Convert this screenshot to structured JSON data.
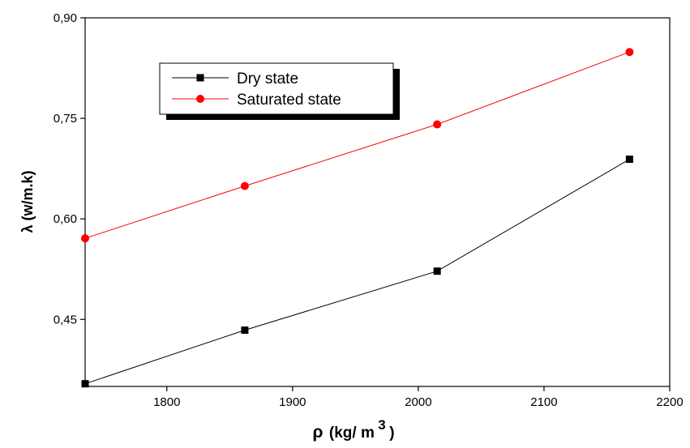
{
  "chart_data": {
    "type": "line",
    "xlabel_symbol": "ρ",
    "xlabel_unit": "(kg/ m",
    "xlabel_exp": "3",
    "xlabel_close": ")",
    "ylabel": "λ (w/m.k)",
    "xlim": [
      1735,
      2200
    ],
    "ylim": [
      0.35,
      0.9
    ],
    "x_ticks": [
      {
        "value": 1800,
        "label": "1800"
      },
      {
        "value": 1900,
        "label": "1900"
      },
      {
        "value": 2000,
        "label": "2000"
      },
      {
        "value": 2100,
        "label": "2100"
      },
      {
        "value": 2200,
        "label": "2200"
      }
    ],
    "y_ticks": [
      {
        "value": 0.45,
        "label": "0,45"
      },
      {
        "value": 0.6,
        "label": "0,60"
      },
      {
        "value": 0.75,
        "label": "0,75"
      },
      {
        "value": 0.9,
        "label": "0,90"
      }
    ],
    "grid": false,
    "legend_position": "top-left",
    "series": [
      {
        "name": "Dry state",
        "marker": "square",
        "color": "#000000",
        "x": [
          1735,
          1862,
          2015,
          2168
        ],
        "y": [
          0.354,
          0.434,
          0.522,
          0.689
        ]
      },
      {
        "name": "Saturated state",
        "marker": "circle",
        "color": "#ff0000",
        "x": [
          1735,
          1862,
          2015,
          2168
        ],
        "y": [
          0.571,
          0.649,
          0.741,
          0.849
        ]
      }
    ]
  }
}
